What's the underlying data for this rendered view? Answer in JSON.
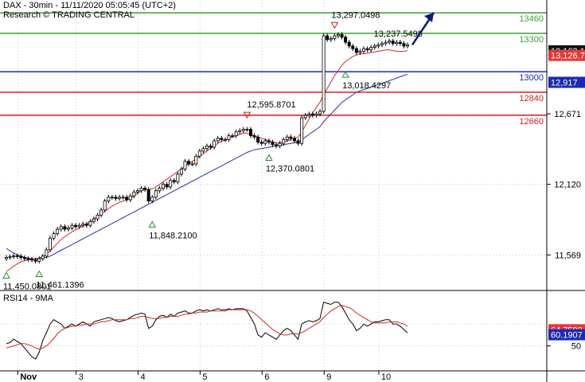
{
  "header": {
    "title": "DAX - 30min - 11/11/2020 05:05:45 (UTC+2)",
    "source": "Research © TRADING CENTRAL"
  },
  "colors": {
    "green": "#3f9e35",
    "blue": "#1a2aa8",
    "red": "#d32020",
    "candle": "#000000",
    "ma_fast": "#d52828",
    "ma_slow": "#2a3590",
    "grid": "#c8c8c8",
    "axis_bg_blue": "#1c2bb3",
    "axis_bg_red": "#e23a3a",
    "axis_bg_price": "#111111",
    "rsi_red_bg": "#e23a3a",
    "rsi_blue_bg": "#1c2bb3"
  },
  "chart_data": [
    {
      "type": "candlestick",
      "instrument": "DAX",
      "timeframe": "30min",
      "ylim": [
        11310,
        13560
      ],
      "y_ticks": [
        11569,
        12120,
        12671
      ],
      "x_tick_labels": [
        "Nov",
        "3",
        "4",
        "5",
        "6",
        "9",
        "10"
      ],
      "levels": [
        {
          "value": 13460,
          "label": "13460",
          "color": "green"
        },
        {
          "value": 13300,
          "label": "13300",
          "color": "green"
        },
        {
          "value": 13000,
          "label": "13000",
          "color": "blue"
        },
        {
          "value": 12840,
          "label": "12840",
          "color": "red"
        },
        {
          "value": 12660,
          "label": "12660",
          "color": "red"
        }
      ],
      "price_tags": [
        {
          "label": "13,163.1",
          "value": 13163,
          "color": "axis_bg_price"
        },
        {
          "label": "13,126.7",
          "value": 13127,
          "color": "axis_bg_red"
        },
        {
          "label": "12,917",
          "value": 12917,
          "color": "axis_bg_blue"
        }
      ],
      "annotations": [
        {
          "label": "13,297.0498",
          "value": 13297.05,
          "marker": "down"
        },
        {
          "label": "13,237.5498",
          "value": 13237.55,
          "marker": "none"
        },
        {
          "label": "12,595.8701",
          "value": 12595.87,
          "marker": "down"
        },
        {
          "label": "13,018.4297",
          "value": 13018.43,
          "marker": "up"
        },
        {
          "label": "12,370.0801",
          "value": 12370.08,
          "marker": "up"
        },
        {
          "label": "11,848.2100",
          "value": 11848.21,
          "marker": "up"
        },
        {
          "label": "11,450.0801",
          "value": 11450.08,
          "marker": "up"
        },
        {
          "label": "11,461.1396",
          "value": 11461.14,
          "marker": "up"
        }
      ],
      "closes": [
        11550,
        11555,
        11562,
        11558,
        11548,
        11540,
        11535,
        11530,
        11520,
        11540,
        11560,
        11610,
        11700,
        11735,
        11770,
        11790,
        11770,
        11780,
        11800,
        11790,
        11800,
        11810,
        11800,
        11830,
        11850,
        11880,
        11920,
        11990,
        12020,
        12020,
        12010,
        12020,
        12020,
        12000,
        12030,
        12060,
        12070,
        12090,
        12080,
        11990,
        12020,
        12070,
        12090,
        12120,
        12100,
        12150,
        12140,
        12200,
        12240,
        12300,
        12280,
        12280,
        12340,
        12380,
        12400,
        12420,
        12410,
        12460,
        12480,
        12470,
        12470,
        12500,
        12500,
        12530,
        12540,
        12550,
        12550,
        12500,
        12490,
        12450,
        12440,
        12460,
        12450,
        12430,
        12420,
        12440,
        12470,
        12490,
        12480,
        12460,
        12440,
        12640,
        12660,
        12670,
        12660,
        12670,
        12690,
        13280,
        13250,
        13260,
        13280,
        13290,
        13270,
        13230,
        13200,
        13180,
        13150,
        13160,
        13180,
        13170,
        13190,
        13200,
        13210,
        13220,
        13230,
        13240,
        13220,
        13230,
        13220,
        13200,
        13210
      ],
      "ma_fast": [
        11440,
        11460,
        11480,
        11500,
        11515,
        11525,
        11530,
        11535,
        11540,
        11545,
        11555,
        11575,
        11600,
        11630,
        11660,
        11690,
        11710,
        11730,
        11750,
        11765,
        11780,
        11795,
        11810,
        11830,
        11850,
        11870,
        11890,
        11910,
        11930,
        11950,
        11965,
        11980,
        11990,
        12000,
        12010,
        12030,
        12050,
        12070,
        12080,
        12080,
        12085,
        12100,
        12120,
        12140,
        12160,
        12180,
        12200,
        12220,
        12240,
        12260,
        12280,
        12300,
        12320,
        12340,
        12360,
        12380,
        12400,
        12420,
        12440,
        12455,
        12470,
        12480,
        12490,
        12500,
        12510,
        12520,
        12520,
        12510,
        12500,
        12490,
        12480,
        12470,
        12460,
        12450,
        12445,
        12445,
        12450,
        12460,
        12470,
        12480,
        12490,
        12530,
        12580,
        12630,
        12680,
        12720,
        12760,
        12820,
        12870,
        12920,
        12970,
        13010,
        13050,
        13080,
        13100,
        13120,
        13130,
        13140,
        13140,
        13145,
        13150,
        13155,
        13160,
        13165,
        13170,
        13170,
        13165,
        13160,
        13158,
        13160,
        13165
      ],
      "ma_slow": [
        11620,
        11600,
        11585,
        11570,
        11560,
        11550,
        11545,
        11540,
        11538,
        11540,
        11545,
        11550,
        11560,
        11575,
        11590,
        11605,
        11620,
        11635,
        11650,
        11665,
        11680,
        11695,
        11710,
        11725,
        11740,
        11755,
        11770,
        11785,
        11800,
        11815,
        11830,
        11845,
        11860,
        11875,
        11890,
        11905,
        11920,
        11935,
        11950,
        11965,
        11980,
        11995,
        12010,
        12025,
        12040,
        12055,
        12070,
        12085,
        12100,
        12115,
        12130,
        12145,
        12160,
        12175,
        12190,
        12205,
        12220,
        12235,
        12250,
        12265,
        12280,
        12295,
        12310,
        12325,
        12340,
        12355,
        12370,
        12380,
        12390,
        12395,
        12400,
        12405,
        12410,
        12415,
        12420,
        12425,
        12430,
        12435,
        12440,
        12445,
        12450,
        12470,
        12490,
        12510,
        12530,
        12550,
        12570,
        12610,
        12640,
        12670,
        12700,
        12730,
        12760,
        12780,
        12800,
        12820,
        12840,
        12850,
        12860,
        12870,
        12880,
        12890,
        12900,
        12910,
        12920,
        12930,
        12940,
        12950,
        12960,
        12970,
        12980
      ]
    },
    {
      "type": "line",
      "title": "RSI14 - 9MA",
      "ylim": [
        30,
        100
      ],
      "y_ticks": [
        50
      ],
      "value_tags": [
        {
          "label": "64.7592",
          "value": 64.7592,
          "color": "rsi_red_bg"
        },
        {
          "label": "60.1907",
          "value": 60.1907,
          "color": "rsi_blue_bg"
        }
      ],
      "series": [
        {
          "role": "rsi",
          "color": "candle",
          "values": [
            52,
            53,
            56,
            54,
            52,
            48,
            44,
            40,
            38,
            44,
            55,
            62,
            70,
            74,
            72,
            70,
            66,
            68,
            70,
            68,
            70,
            72,
            70,
            68,
            72,
            73,
            74,
            75,
            76,
            75,
            73,
            72,
            73,
            74,
            76,
            78,
            79,
            80,
            79,
            66,
            68,
            74,
            77,
            78,
            76,
            79,
            77,
            80,
            81,
            82,
            80,
            80,
            82,
            83,
            82,
            83,
            82,
            83,
            84,
            83,
            83,
            84,
            83,
            84,
            84,
            84,
            82,
            76,
            70,
            60,
            58,
            62,
            60,
            58,
            56,
            60,
            64,
            66,
            64,
            60,
            56,
            70,
            72,
            73,
            72,
            73,
            75,
            90,
            89,
            88,
            90,
            90,
            86,
            80,
            74,
            70,
            64,
            66,
            70,
            68,
            70,
            72,
            72,
            73,
            74,
            74,
            70,
            70,
            68,
            65,
            62
          ]
        },
        {
          "role": "rsi_ma",
          "color": "ma_fast",
          "values": [
            48,
            49,
            50,
            51,
            52,
            52,
            51,
            50,
            48,
            47,
            48,
            50,
            53,
            57,
            61,
            64,
            66,
            67,
            68,
            68,
            69,
            69,
            70,
            70,
            70,
            71,
            72,
            72,
            73,
            74,
            74,
            74,
            74,
            74,
            75,
            75,
            76,
            77,
            77,
            76,
            75,
            75,
            75,
            76,
            76,
            77,
            77,
            77,
            78,
            79,
            79,
            80,
            80,
            81,
            81,
            81,
            82,
            82,
            82,
            82,
            82,
            83,
            83,
            83,
            83,
            83,
            83,
            82,
            80,
            77,
            74,
            71,
            68,
            65,
            63,
            61,
            60,
            60,
            61,
            61,
            61,
            62,
            64,
            66,
            68,
            70,
            72,
            76,
            79,
            82,
            84,
            86,
            87,
            86,
            85,
            83,
            80,
            78,
            76,
            74,
            72,
            71,
            71,
            71,
            71,
            72,
            72,
            72,
            71,
            70,
            68
          ]
        }
      ]
    }
  ]
}
